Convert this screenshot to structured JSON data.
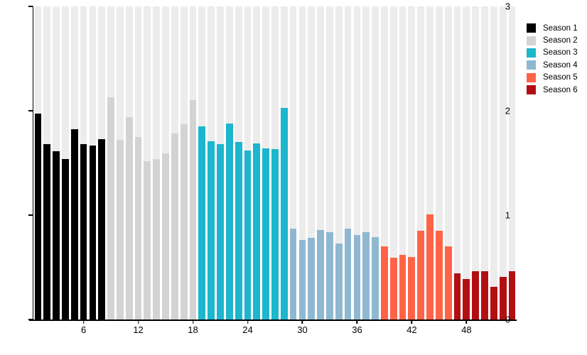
{
  "chart_data": {
    "type": "bar",
    "title": "",
    "xlabel": "",
    "ylabel": "",
    "ylim": [
      0,
      3
    ],
    "yticks": [
      "0",
      "1",
      "2",
      "3"
    ],
    "xtick_interval": 6,
    "xticks": [
      "6",
      "12",
      "18",
      "24",
      "30",
      "36",
      "42",
      "48"
    ],
    "grid": false,
    "background_stripes": true,
    "stripe_color": "#ececec",
    "legend_position": "right",
    "series": [
      {
        "name": "Season 1",
        "color": "#000000",
        "values": [
          1.97,
          1.68,
          1.61,
          1.54,
          1.82,
          1.68,
          1.67,
          1.73
        ]
      },
      {
        "name": "Season 2",
        "color": "#d3d3d3",
        "values": [
          2.13,
          1.72,
          1.94,
          1.75,
          1.52,
          1.54,
          1.59,
          1.78,
          1.87,
          2.1
        ]
      },
      {
        "name": "Season 3",
        "color": "#1cb6cd",
        "values": [
          1.85,
          1.71,
          1.68,
          1.88,
          1.7,
          1.62,
          1.69,
          1.64,
          1.63,
          2.03
        ]
      },
      {
        "name": "Season 4",
        "color": "#8fb8d0",
        "values": [
          0.87,
          0.76,
          0.78,
          0.86,
          0.84,
          0.73,
          0.87,
          0.81,
          0.84,
          0.79
        ]
      },
      {
        "name": "Season 5",
        "color": "#ff6347",
        "values": [
          0.7,
          0.59,
          0.62,
          0.6,
          0.85,
          1.01,
          0.85,
          0.7
        ]
      },
      {
        "name": "Season 6",
        "color": "#b20f13",
        "values": [
          0.44,
          0.39,
          0.46,
          0.46,
          0.31,
          0.41,
          0.46
        ]
      }
    ],
    "axis_color": "#000000",
    "text_color": "#000000"
  }
}
